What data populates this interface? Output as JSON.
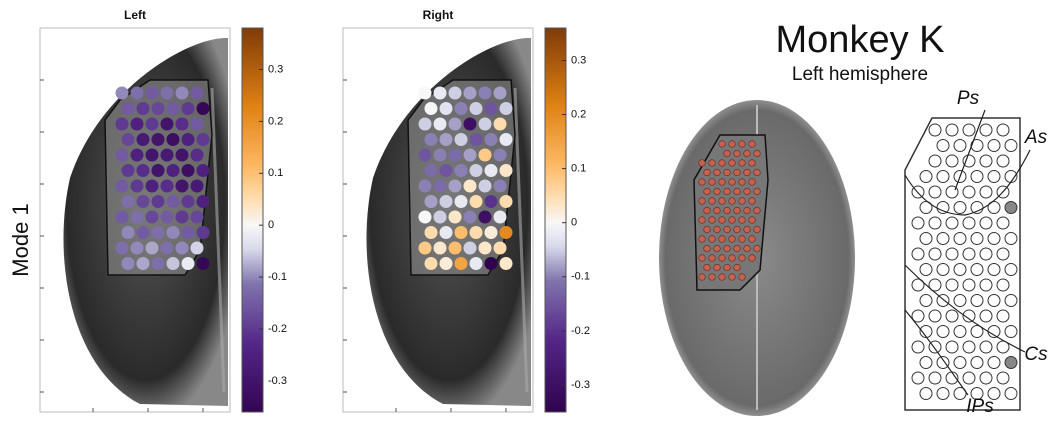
{
  "ylabel": "Mode 1",
  "panels": [
    {
      "title": "Left",
      "clim": [
        -0.36,
        0.38
      ],
      "ticks": [
        0.3,
        0.2,
        0.1,
        0,
        -0.1,
        -0.2,
        -0.3
      ],
      "values": [
        -0.1,
        -0.12,
        -0.15,
        -0.12,
        -0.1,
        -0.15,
        -0.15,
        -0.2,
        -0.18,
        -0.15,
        -0.2,
        -0.35,
        -0.2,
        -0.25,
        -0.2,
        -0.3,
        -0.22,
        -0.15,
        -0.18,
        -0.28,
        -0.3,
        -0.32,
        -0.25,
        -0.2,
        -0.15,
        -0.25,
        -0.3,
        -0.28,
        -0.3,
        -0.22,
        -0.2,
        -0.22,
        -0.3,
        -0.25,
        -0.32,
        -0.25,
        -0.15,
        -0.2,
        -0.25,
        -0.22,
        -0.3,
        -0.28,
        -0.12,
        -0.18,
        -0.2,
        -0.15,
        -0.2,
        -0.25,
        -0.15,
        -0.12,
        -0.18,
        -0.15,
        -0.2,
        -0.18,
        -0.1,
        -0.15,
        -0.12,
        -0.1,
        -0.15,
        -0.2,
        -0.12,
        -0.1,
        -0.08,
        -0.12,
        -0.1,
        -0.05,
        -0.1,
        -0.08,
        -0.12,
        -0.06,
        -0.02,
        -0.35
      ]
    },
    {
      "title": "Right",
      "clim": [
        -0.35,
        0.36
      ],
      "ticks": [
        0.3,
        0.2,
        0.1,
        0,
        -0.1,
        -0.2,
        -0.3
      ],
      "values": [
        0,
        -0.02,
        -0.05,
        -0.08,
        -0.1,
        -0.08,
        0,
        -0.03,
        -0.1,
        -0.05,
        -0.15,
        -0.05,
        -0.05,
        -0.02,
        -0.08,
        -0.3,
        -0.05,
        0.05,
        -0.1,
        -0.08,
        -0.05,
        -0.15,
        -0.1,
        -0.02,
        -0.15,
        -0.1,
        -0.12,
        -0.08,
        0.08,
        -0.1,
        -0.12,
        -0.15,
        -0.1,
        -0.05,
        -0.02,
        0.03,
        -0.1,
        -0.12,
        -0.08,
        0.03,
        -0.05,
        -0.1,
        -0.08,
        -0.05,
        -0.02,
        0.05,
        -0.2,
        0.05,
        0,
        -0.05,
        0.03,
        -0.1,
        -0.3,
        -0.02,
        0.05,
        -0.02,
        0.1,
        0.05,
        0.02,
        0.2,
        0.08,
        0.03,
        0.1,
        -0.05,
        0.03,
        0.05,
        0.05,
        0.02,
        0.15,
        -0.02,
        -0.35,
        0.03
      ]
    }
  ],
  "atlas": {
    "title": "Monkey K",
    "subtitle": "Left hemisphere",
    "labels": [
      "Ps",
      "As",
      "Cs",
      "IPs"
    ]
  }
}
